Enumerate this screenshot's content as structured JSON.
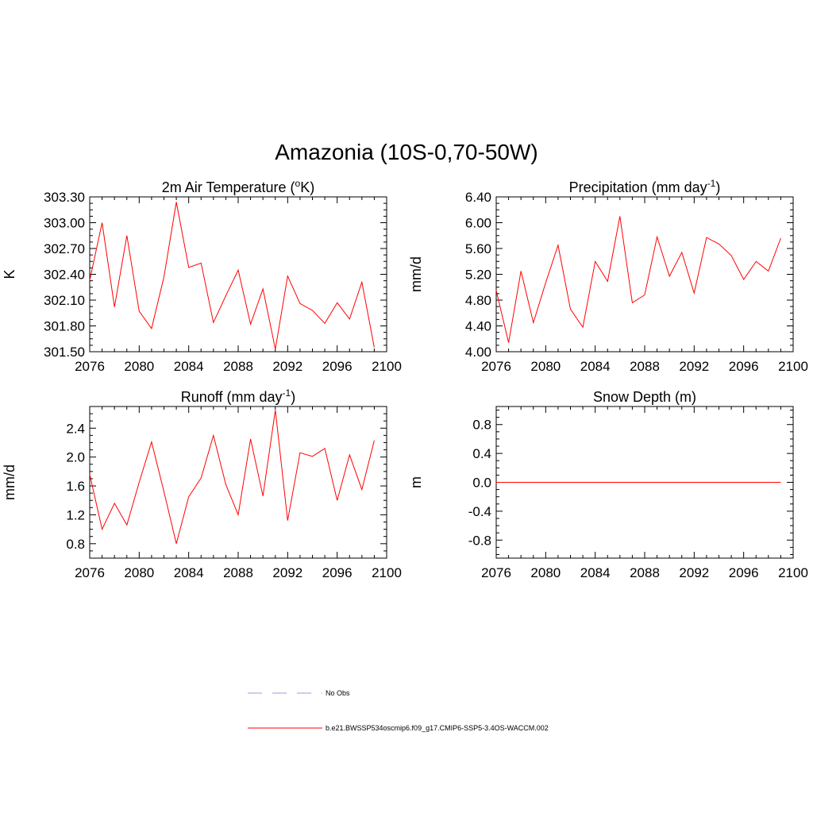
{
  "title": "Amazonia (10S-0,70-50W)",
  "colors": {
    "series": "#ff0000",
    "obs": "#9999dd",
    "axis": "#000000"
  },
  "legend": {
    "obs_label": "No Obs",
    "model_label": "b.e21.BWSSP534oscmip6.f09_g17.CMIP6-SSP5-3.4OS-WACCM.002"
  },
  "chart_data": [
    {
      "id": "temp",
      "type": "line",
      "title": "2m Air Temperature (",
      "title_sup": "o",
      "title_tail": "K)",
      "ylabel": "K",
      "xlim": [
        2076,
        2100
      ],
      "ylim": [
        301.5,
        303.3
      ],
      "xticks": [
        "2076",
        "2080",
        "2084",
        "2088",
        "2092",
        "2096",
        "2100"
      ],
      "yticks": [
        "301.50",
        "301.80",
        "302.10",
        "302.40",
        "302.70",
        "303.00",
        "303.30"
      ],
      "x": [
        2076,
        2077,
        2078,
        2079,
        2080,
        2081,
        2082,
        2083,
        2084,
        2085,
        2086,
        2087,
        2088,
        2089,
        2090,
        2091,
        2092,
        2093,
        2094,
        2095,
        2096,
        2097,
        2098,
        2099
      ],
      "values": [
        302.33,
        303.0,
        302.02,
        302.85,
        301.97,
        301.77,
        302.37,
        303.24,
        302.48,
        302.53,
        301.84,
        302.15,
        302.45,
        301.82,
        302.23,
        301.53,
        302.38,
        302.06,
        301.98,
        301.83,
        302.07,
        301.88,
        302.31,
        301.55
      ]
    },
    {
      "id": "precip",
      "type": "line",
      "title": "Precipitation (mm day",
      "title_sup": "-1",
      "title_tail": ")",
      "ylabel": "mm/d",
      "xlim": [
        2076,
        2100
      ],
      "ylim": [
        4.0,
        6.4
      ],
      "xticks": [
        "2076",
        "2080",
        "2084",
        "2088",
        "2092",
        "2096",
        "2100"
      ],
      "yticks": [
        "4.00",
        "4.40",
        "4.80",
        "5.20",
        "5.60",
        "6.00",
        "6.40"
      ],
      "x": [
        2076,
        2077,
        2078,
        2079,
        2080,
        2081,
        2082,
        2083,
        2084,
        2085,
        2086,
        2087,
        2088,
        2089,
        2090,
        2091,
        2092,
        2093,
        2094,
        2095,
        2096,
        2097,
        2098,
        2099
      ],
      "values": [
        4.95,
        4.14,
        5.25,
        4.45,
        5.07,
        5.65,
        4.66,
        4.38,
        5.4,
        5.09,
        6.1,
        4.76,
        4.88,
        5.78,
        5.17,
        5.54,
        4.91,
        5.77,
        5.67,
        5.49,
        5.12,
        5.4,
        5.25,
        5.76
      ]
    },
    {
      "id": "runoff",
      "type": "line",
      "title": "Runoff (mm day",
      "title_sup": "-1",
      "title_tail": ")",
      "ylabel": "mm/d",
      "xlim": [
        2076,
        2100
      ],
      "ylim": [
        0.6,
        2.7
      ],
      "xticks": [
        "2076",
        "2080",
        "2084",
        "2088",
        "2092",
        "2096",
        "2100"
      ],
      "yticks": [
        "0.8",
        "1.2",
        "1.6",
        "2.0",
        "2.4"
      ],
      "ytick_values": [
        0.8,
        1.2,
        1.6,
        2.0,
        2.4
      ],
      "x": [
        2076,
        2077,
        2078,
        2079,
        2080,
        2081,
        2082,
        2083,
        2084,
        2085,
        2086,
        2087,
        2088,
        2089,
        2090,
        2091,
        2092,
        2093,
        2094,
        2095,
        2096,
        2097,
        2098,
        2099
      ],
      "values": [
        1.76,
        1.0,
        1.36,
        1.06,
        1.65,
        2.21,
        1.52,
        0.8,
        1.45,
        1.71,
        2.3,
        1.62,
        1.2,
        2.25,
        1.46,
        2.65,
        1.12,
        2.06,
        2.01,
        2.12,
        1.4,
        2.03,
        1.55,
        2.23
      ]
    },
    {
      "id": "snow",
      "type": "line",
      "title": "Snow Depth (m)",
      "title_sup": "",
      "title_tail": "",
      "ylabel": "m",
      "xlim": [
        2076,
        2100
      ],
      "ylim": [
        -1.05,
        1.05
      ],
      "xticks": [
        "2076",
        "2080",
        "2084",
        "2088",
        "2092",
        "2096",
        "2100"
      ],
      "yticks": [
        "-0.8",
        "-0.4",
        "0.0",
        "0.4",
        "0.8"
      ],
      "ytick_values": [
        -0.8,
        -0.4,
        0.0,
        0.4,
        0.8
      ],
      "x": [
        2076,
        2077,
        2078,
        2079,
        2080,
        2081,
        2082,
        2083,
        2084,
        2085,
        2086,
        2087,
        2088,
        2089,
        2090,
        2091,
        2092,
        2093,
        2094,
        2095,
        2096,
        2097,
        2098,
        2099
      ],
      "values": [
        0,
        0,
        0,
        0,
        0,
        0,
        0,
        0,
        0,
        0,
        0,
        0,
        0,
        0,
        0,
        0,
        0,
        0,
        0,
        0,
        0,
        0,
        0,
        0
      ]
    }
  ]
}
